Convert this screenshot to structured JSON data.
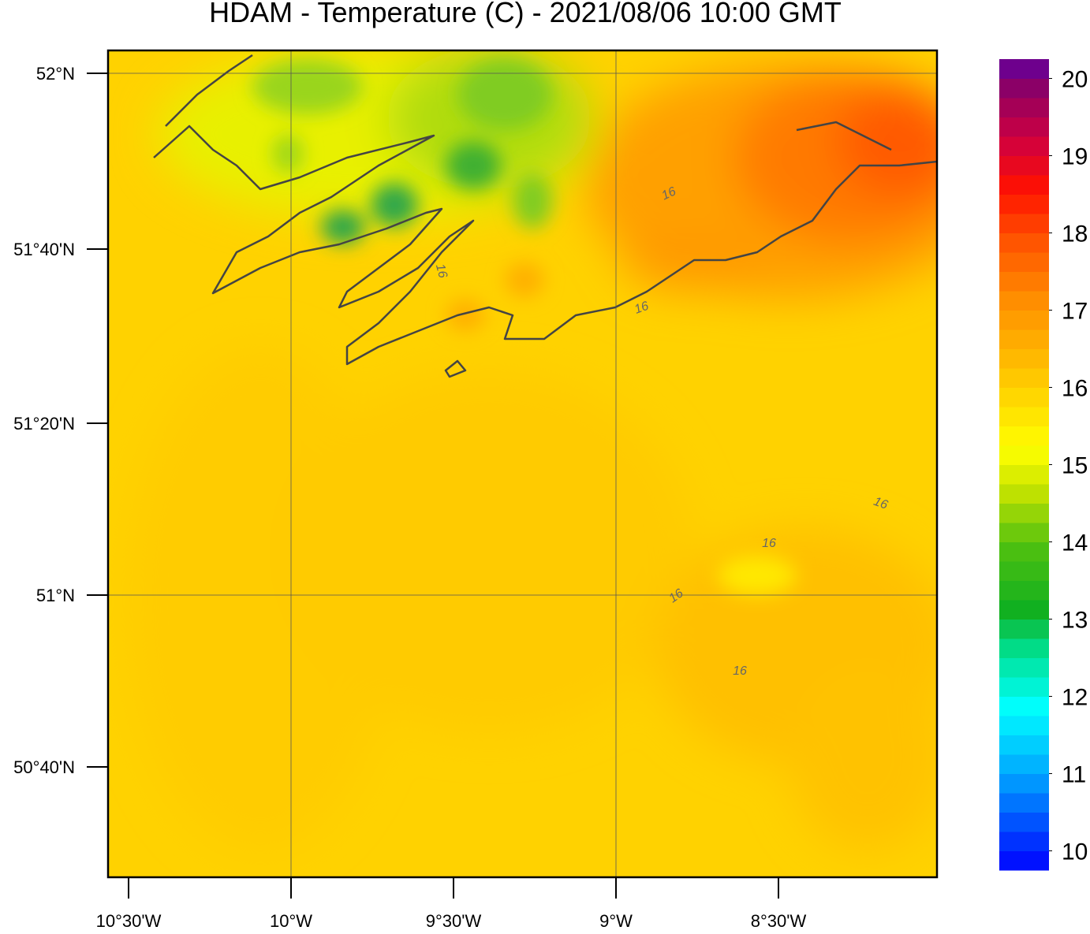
{
  "title": "HDAM - Temperature (C)  -  2021/08/06  10:00 GMT",
  "map": {
    "lat_labels": [
      "52°N",
      "51°40'N",
      "51°20'N",
      "51°N",
      "50°40'N"
    ],
    "lon_labels": [
      "10°30'W",
      "10°W",
      "9°30'W",
      "9°W",
      "8°30'W"
    ],
    "contour_labels": [
      "16",
      "16",
      "16",
      "16",
      "16",
      "16",
      "16"
    ]
  },
  "colorbar": {
    "range": [
      9.75,
      20.25
    ],
    "ticks": [
      10,
      11,
      12,
      13,
      14,
      15,
      16,
      17,
      18,
      19,
      20
    ]
  }
}
